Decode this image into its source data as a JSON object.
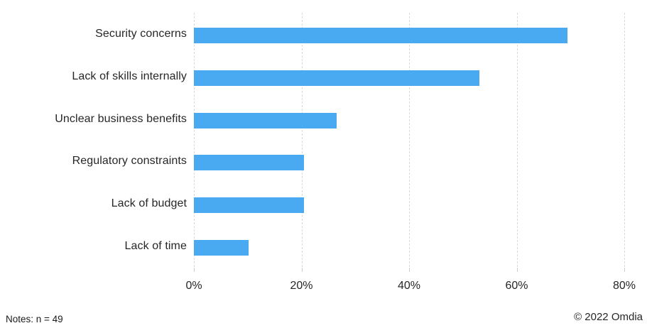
{
  "chart_data": {
    "type": "bar",
    "orientation": "horizontal",
    "title": "",
    "categories": [
      "Security concerns",
      "Lack of skills internally",
      "Unclear business benefits",
      "Regulatory constraints",
      "Lack of budget",
      "Lack of time"
    ],
    "values": [
      69.4,
      53.1,
      26.5,
      20.4,
      20.4,
      10.2
    ],
    "unit": "%",
    "xlabel": "",
    "ylabel": "",
    "xlim": [
      0,
      80
    ],
    "x_tick_values": [
      0,
      20,
      40,
      60,
      80
    ],
    "x_tick_labels": [
      "0%",
      "20%",
      "40%",
      "60%",
      "80%"
    ],
    "grid": "vertical dashed gridlines, no axis lines",
    "legend": "none",
    "bar_color": "#49A9F1"
  },
  "colors": {
    "bar_fill": "#49A9F1",
    "gridline": "#D9D9D9",
    "text": "#262626",
    "background": "#FFFFFF"
  },
  "footer": {
    "notes": "Notes: n = 49",
    "copyright": "© 2022 Omdia"
  }
}
